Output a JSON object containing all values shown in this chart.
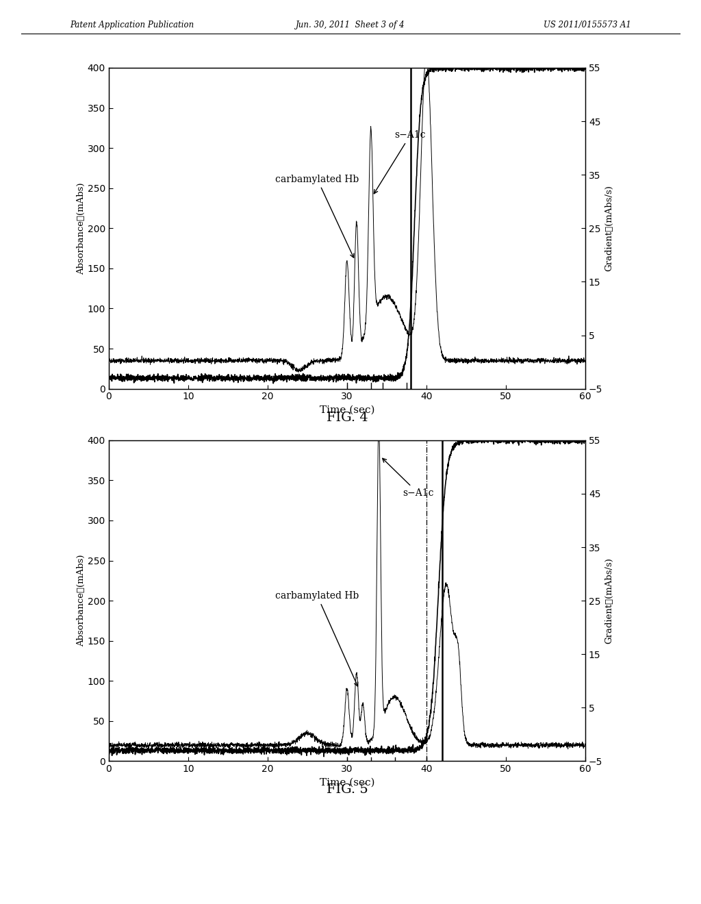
{
  "header_left": "Patent Application Publication",
  "header_center": "Jun. 30, 2011  Sheet 3 of 4",
  "header_right": "US 2011/0155573 A1",
  "fig4_label": "FIG. 4",
  "fig5_label": "FIG. 5",
  "xlabel": "Time (sec)",
  "ylabel_left": "Absorbance（mAbs）",
  "ylabel_right": "Gradient（mAbs/s）",
  "xlim": [
    0,
    60
  ],
  "ylim_left": [
    0,
    400
  ],
  "ylim_right": [
    -5,
    55
  ],
  "xticks": [
    0,
    10,
    20,
    30,
    40,
    50,
    60
  ],
  "yticks_left": [
    0,
    50,
    100,
    150,
    200,
    250,
    300,
    350,
    400
  ],
  "yticks_right": [
    -5,
    5,
    15,
    25,
    35,
    45,
    55
  ],
  "annotation_s_a1c": "s−A1c",
  "annotation_carb": "carbamylated Hb",
  "bg_color": "#ffffff",
  "line_color": "#000000"
}
